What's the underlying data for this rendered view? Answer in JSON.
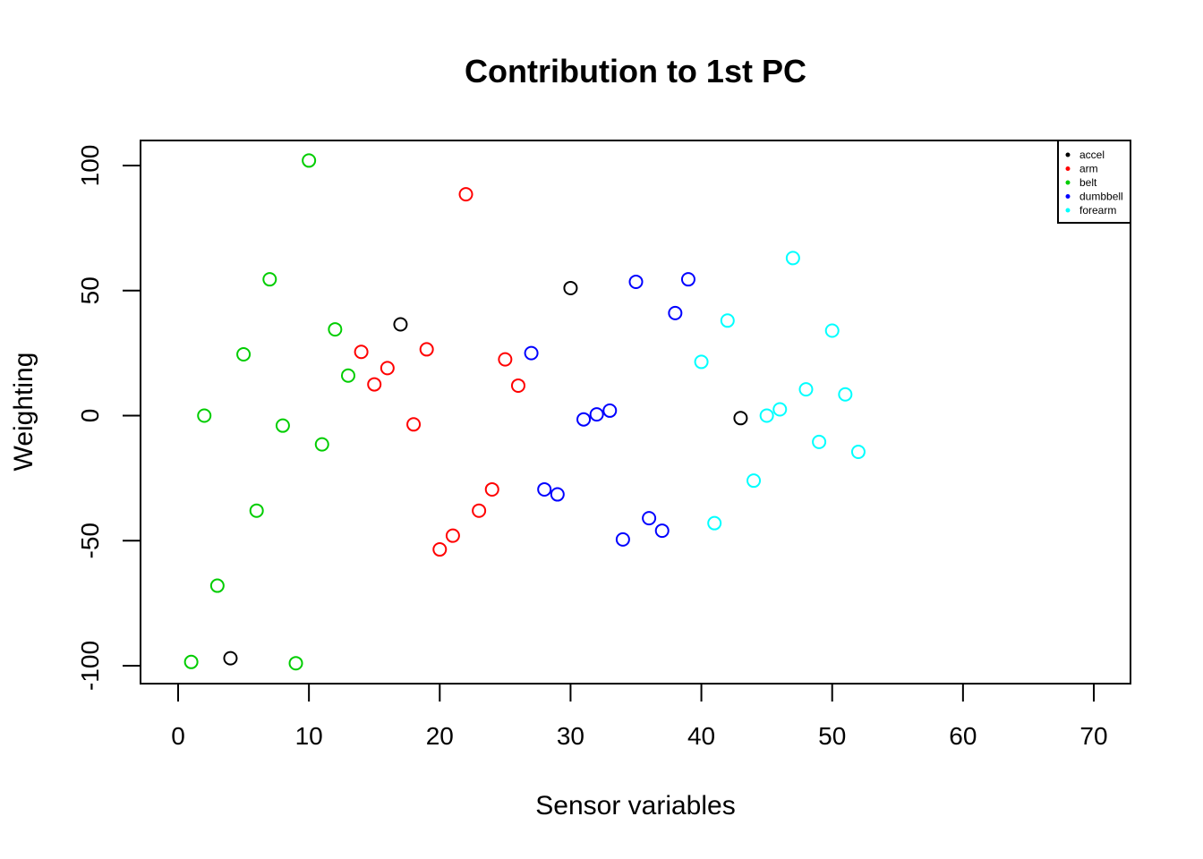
{
  "chart_data": {
    "type": "scatter",
    "title": "Contribution to 1st PC",
    "xlabel": "Sensor variables",
    "ylabel": "Weighting",
    "xlim": [
      0,
      70
    ],
    "ylim": [
      -100,
      100
    ],
    "x_ticks": [
      "0",
      "10",
      "20",
      "30",
      "40",
      "50",
      "60",
      "70"
    ],
    "y_ticks": [
      "-100",
      "-50",
      "0",
      "50",
      "100"
    ],
    "grid": false,
    "legend_position": "top-right",
    "series": [
      {
        "name": "accel",
        "color": "#000000",
        "points": [
          [
            4,
            -97
          ],
          [
            17,
            36.5
          ],
          [
            30,
            51
          ],
          [
            43,
            -1
          ]
        ]
      },
      {
        "name": "arm",
        "color": "#ff0000",
        "points": [
          [
            14,
            25.5
          ],
          [
            15,
            12.5
          ],
          [
            16,
            19
          ],
          [
            18,
            -3.5
          ],
          [
            19,
            26.5
          ],
          [
            20,
            -53.5
          ],
          [
            21,
            -48
          ],
          [
            22,
            88.5
          ],
          [
            23,
            -38
          ],
          [
            24,
            -29.5
          ],
          [
            25,
            22.5
          ],
          [
            26,
            12
          ]
        ]
      },
      {
        "name": "belt",
        "color": "#00cd00",
        "points": [
          [
            1,
            -98.5
          ],
          [
            2,
            0
          ],
          [
            3,
            -68
          ],
          [
            5,
            24.5
          ],
          [
            6,
            -38
          ],
          [
            7,
            54.5
          ],
          [
            8,
            -4
          ],
          [
            9,
            -99
          ],
          [
            10,
            102
          ],
          [
            11,
            -11.5
          ],
          [
            12,
            34.5
          ],
          [
            13,
            16
          ]
        ]
      },
      {
        "name": "dumbbell",
        "color": "#0000ff",
        "points": [
          [
            27,
            25
          ],
          [
            28,
            -29.5
          ],
          [
            29,
            -31.5
          ],
          [
            31,
            -1.5
          ],
          [
            32,
            0.5
          ],
          [
            33,
            2
          ],
          [
            34,
            -49.5
          ],
          [
            35,
            53.5
          ],
          [
            36,
            -41
          ],
          [
            37,
            -46
          ],
          [
            38,
            41
          ],
          [
            39,
            54.5
          ]
        ]
      },
      {
        "name": "forearm",
        "color": "#00ffff",
        "points": [
          [
            40,
            21.5
          ],
          [
            41,
            -43
          ],
          [
            42,
            38
          ],
          [
            44,
            -26
          ],
          [
            45,
            0
          ],
          [
            46,
            2.5
          ],
          [
            47,
            63
          ],
          [
            48,
            10.5
          ],
          [
            49,
            -10.5
          ],
          [
            50,
            34
          ],
          [
            51,
            8.5
          ],
          [
            52,
            -14.5
          ]
        ]
      }
    ]
  }
}
